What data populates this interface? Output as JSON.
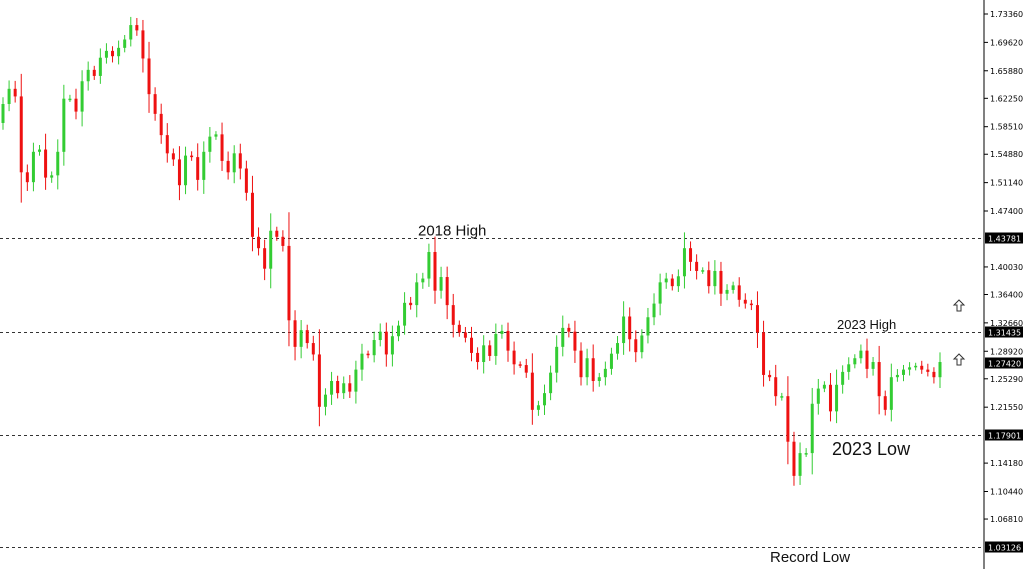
{
  "chart_data": {
    "type": "candlestick",
    "colors": {
      "bull": "#33cc33",
      "bear": "#ee1111",
      "axis": "#000000",
      "level_line": "#333333",
      "label_bg": "#000000"
    },
    "y_ticks": [
      "1.73360",
      "1.69620",
      "1.65880",
      "1.62250",
      "1.58510",
      "1.54880",
      "1.51140",
      "1.47400",
      "1.40030",
      "1.36400",
      "1.32660",
      "1.28920",
      "1.25290",
      "1.21550",
      "1.14180",
      "1.10440",
      "1.06810"
    ],
    "ylim": [
      1.02,
      1.75
    ],
    "levels": [
      {
        "value": "1.43781",
        "price": 1.43781
      },
      {
        "value": "1.31435",
        "price": 1.31435
      },
      {
        "value": "1.17901",
        "price": 1.17901
      },
      {
        "value": "1.03126",
        "price": 1.03126
      }
    ],
    "current": {
      "value": "1.27420",
      "price": 1.2742
    },
    "annotations": [
      {
        "text": "2018 High",
        "price": 1.43781,
        "idx": 62,
        "size": 15
      },
      {
        "text": "2023 High",
        "price": 1.31435,
        "idx": 121,
        "size": 13
      },
      {
        "text": "2023 Low",
        "price": 1.179,
        "idx": 118,
        "size": 18
      },
      {
        "text": "Record Low",
        "price": 1.03126,
        "idx": 113,
        "size": 15
      }
    ],
    "closes": [
      1.615,
      1.635,
      1.625,
      1.525,
      1.512,
      1.552,
      1.555,
      1.518,
      1.521,
      1.552,
      1.622,
      1.622,
      1.605,
      1.645,
      1.66,
      1.652,
      1.676,
      1.685,
      1.678,
      1.689,
      1.7,
      1.719,
      1.712,
      1.675,
      1.628,
      1.602,
      1.574,
      1.55,
      1.542,
      1.508,
      1.547,
      1.545,
      1.515,
      1.552,
      1.572,
      1.575,
      1.54,
      1.525,
      1.55,
      1.53,
      1.498,
      1.44,
      1.425,
      1.398,
      1.448,
      1.44,
      1.428,
      1.33,
      1.295,
      1.317,
      1.3,
      1.285,
      1.216,
      1.232,
      1.25,
      1.234,
      1.247,
      1.236,
      1.265,
      1.286,
      1.284,
      1.304,
      1.315,
      1.285,
      1.309,
      1.323,
      1.353,
      1.35,
      1.38,
      1.385,
      1.42,
      1.369,
      1.387,
      1.35,
      1.324,
      1.314,
      1.307,
      1.287,
      1.275,
      1.297,
      1.283,
      1.312,
      1.316,
      1.29,
      1.272,
      1.271,
      1.261,
      1.212,
      1.218,
      1.234,
      1.261,
      1.295,
      1.32,
      1.315,
      1.29,
      1.255,
      1.28,
      1.25,
      1.255,
      1.266,
      1.286,
      1.3,
      1.335,
      1.305,
      1.288,
      1.31,
      1.334,
      1.352,
      1.38,
      1.385,
      1.375,
      1.388,
      1.425,
      1.407,
      1.395,
      1.396,
      1.375,
      1.395,
      1.365,
      1.37,
      1.376,
      1.357,
      1.352,
      1.35,
      1.314,
      1.258,
      1.255,
      1.23,
      1.23,
      1.17,
      1.125,
      1.155,
      1.155,
      1.22,
      1.24,
      1.245,
      1.21,
      1.245,
      1.262,
      1.272,
      1.28,
      1.29,
      1.266,
      1.275,
      1.23,
      1.212,
      1.255,
      1.258,
      1.265,
      1.268,
      1.27,
      1.265,
      1.262,
      1.255,
      1.275
    ]
  }
}
